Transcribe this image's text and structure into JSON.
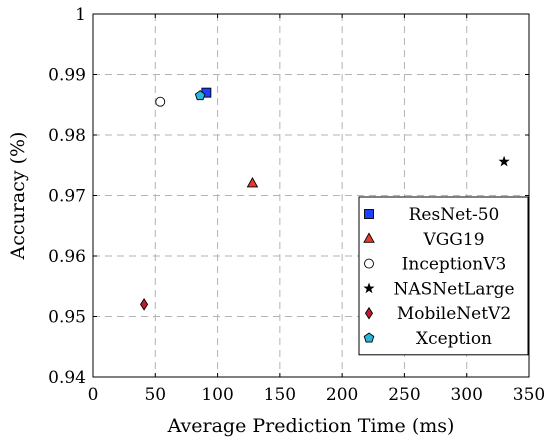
{
  "chart_data": {
    "type": "scatter",
    "title": "",
    "xlabel": "Average Prediction Time (ms)",
    "ylabel": "Accuracy (%)",
    "xlim": [
      0,
      350
    ],
    "ylim": [
      0.94,
      1.0
    ],
    "xticks": [
      0,
      50,
      100,
      150,
      200,
      250,
      300,
      350
    ],
    "yticks": [
      0.94,
      0.95,
      0.96,
      0.97,
      0.98,
      0.99,
      1.0
    ],
    "xtick_labels": [
      "0",
      "50",
      "100",
      "150",
      "200",
      "250",
      "300",
      "350"
    ],
    "ytick_labels": [
      "0.94",
      "0.95",
      "0.96",
      "0.97",
      "0.98",
      "0.99",
      "1"
    ],
    "grid": true,
    "legend_position": "bottom-right",
    "series": [
      {
        "name": "ResNet-50",
        "marker": "square",
        "color": "#1f3fff",
        "x": 91,
        "y": 0.987
      },
      {
        "name": "VGG19",
        "marker": "triangle",
        "color": "#e83a2a",
        "x": 128,
        "y": 0.972
      },
      {
        "name": "InceptionV3",
        "marker": "circle",
        "color": "#ffffff",
        "x": 54,
        "y": 0.9855
      },
      {
        "name": "NASNetLarge",
        "marker": "star",
        "color": "#000000",
        "x": 330,
        "y": 0.9756
      },
      {
        "name": "MobileNetV2",
        "marker": "diamond",
        "color": "#c21a2c",
        "x": 41,
        "y": 0.952
      },
      {
        "name": "Xception",
        "marker": "pentagon",
        "color": "#29b6d8",
        "x": 86,
        "y": 0.9865
      }
    ]
  }
}
